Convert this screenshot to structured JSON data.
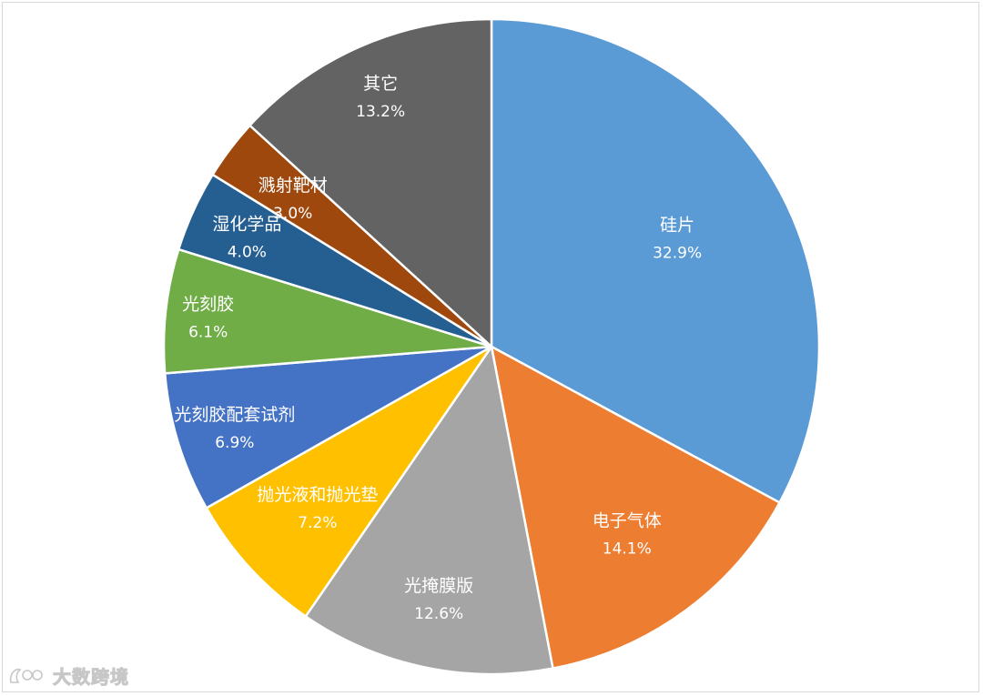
{
  "chart_data": {
    "type": "pie",
    "title": "",
    "start_angle_deg": 0,
    "direction": "clockwise",
    "slices": [
      {
        "label": "硅片",
        "value": 32.9,
        "value_label": "32.9%",
        "color": "#5B9BD5"
      },
      {
        "label": "电子气体",
        "value": 14.1,
        "value_label": "14.1%",
        "color": "#ED7D31"
      },
      {
        "label": "光掩膜版",
        "value": 12.6,
        "value_label": "12.6%",
        "color": "#A5A5A5"
      },
      {
        "label": "抛光液和抛光垫",
        "value": 7.2,
        "value_label": "7.2%",
        "color": "#FFC000"
      },
      {
        "label": "光刻胶配套试剂",
        "value": 6.9,
        "value_label": "6.9%",
        "color": "#4472C4"
      },
      {
        "label": "光刻胶",
        "value": 6.1,
        "value_label": "6.1%",
        "color": "#70AD47"
      },
      {
        "label": "湿化学品",
        "value": 4.0,
        "value_label": "4.0%",
        "color": "#255E91"
      },
      {
        "label": "溅射靶材",
        "value": 3.0,
        "value_label": "3.0%",
        "color": "#9E480E"
      },
      {
        "label": "其它",
        "value": 13.2,
        "value_label": "13.2%",
        "color": "#636363"
      }
    ]
  },
  "watermark": {
    "text": "大数跨境"
  }
}
